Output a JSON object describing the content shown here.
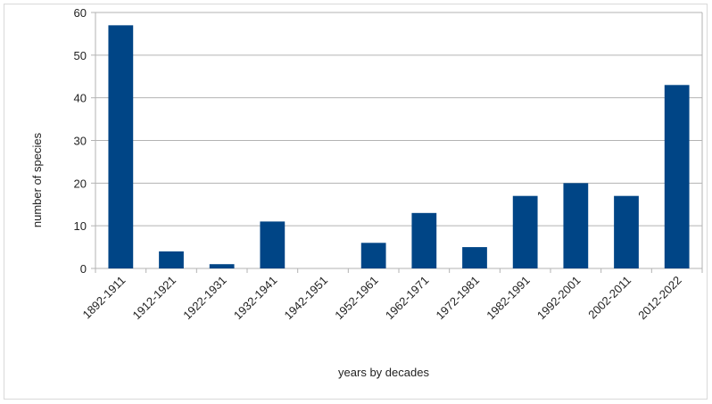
{
  "chart_data": {
    "type": "bar",
    "categories": [
      "1892-1911",
      "1912-1921",
      "1922-1931",
      "1932-1941",
      "1942-1951",
      "1952-1961",
      "1962-1971",
      "1972-1981",
      "1982-1991",
      "1992-2001",
      "2002-2011",
      "2012-2022"
    ],
    "values": [
      57,
      4,
      1,
      11,
      0,
      6,
      13,
      5,
      17,
      20,
      17,
      43
    ],
    "xlabel": "years by decades",
    "ylabel": "number of species",
    "ylim": [
      0,
      60
    ],
    "yticks": [
      0,
      10,
      20,
      30,
      40,
      50,
      60
    ],
    "grid": true,
    "bar_color": "#004586",
    "grid_color": "#b3b3b3"
  }
}
